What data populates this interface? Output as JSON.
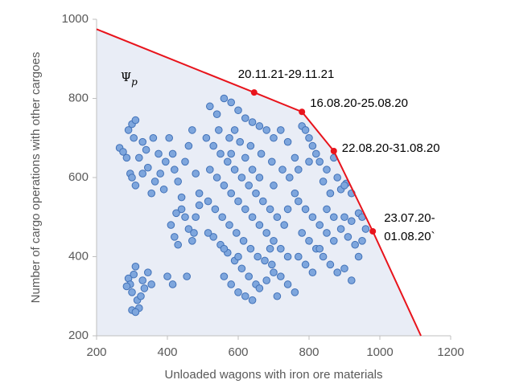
{
  "chart_data": {
    "type": "scatter",
    "xlabel": "Unloaded wagons with iron ore materials",
    "ylabel": "Number of cargo operations with other cargoes",
    "xlim": [
      200,
      1200
    ],
    "ylim": [
      200,
      1000
    ],
    "xticks": [
      200,
      400,
      600,
      800,
      1000,
      1200
    ],
    "yticks": [
      200,
      400,
      600,
      800,
      1000
    ],
    "grid": false,
    "color": "#7ea6dd",
    "edge_color": "#4272b8",
    "region_color": "#e9edf6",
    "region_symbol": "Ψ",
    "region_subscript": "p",
    "x": [
      265,
      275,
      290,
      300,
      305,
      295,
      300,
      310,
      320,
      330,
      340,
      345,
      355,
      365,
      380,
      390,
      395,
      310,
      285,
      360,
      375,
      330,
      290,
      295,
      300,
      305,
      310,
      315,
      320,
      325,
      330,
      335,
      345,
      355,
      300,
      310,
      285,
      405,
      415,
      420,
      430,
      440,
      450,
      460,
      470,
      480,
      490,
      410,
      420,
      430,
      440,
      450,
      460,
      470,
      480,
      490,
      400,
      415,
      455,
      475,
      425,
      520,
      540,
      560,
      580,
      600,
      620,
      640,
      660,
      680,
      700,
      720,
      740,
      510,
      530,
      550,
      570,
      590,
      610,
      630,
      650,
      670,
      690,
      710,
      730,
      520,
      540,
      560,
      580,
      600,
      620,
      640,
      660,
      680,
      700,
      720,
      740,
      515,
      535,
      555,
      575,
      595,
      615,
      635,
      655,
      675,
      695,
      530,
      550,
      570,
      590,
      610,
      630,
      650,
      560,
      580,
      600,
      620,
      640,
      660,
      680,
      700,
      720,
      740,
      760,
      545,
      575,
      605,
      635,
      665,
      695,
      725,
      745,
      515,
      700,
      620,
      580,
      660,
      760,
      760,
      740,
      590,
      640,
      560,
      600,
      690,
      710,
      770,
      790,
      810,
      830,
      850,
      870,
      890,
      910,
      930,
      950,
      960,
      780,
      800,
      820,
      840,
      860,
      880,
      900,
      920,
      940,
      770,
      790,
      810,
      830,
      850,
      870,
      900,
      920,
      940,
      950,
      780,
      790,
      800,
      810,
      820,
      830,
      850,
      870,
      880,
      890,
      860,
      840,
      800,
      770,
      920,
      905,
      900
    ],
    "y": [
      675,
      665,
      720,
      735,
      700,
      610,
      600,
      580,
      650,
      690,
      670,
      625,
      560,
      590,
      610,
      570,
      640,
      745,
      650,
      700,
      660,
      610,
      345,
      330,
      310,
      355,
      375,
      290,
      270,
      300,
      340,
      320,
      360,
      330,
      265,
      260,
      325,
      700,
      660,
      620,
      590,
      550,
      640,
      680,
      720,
      610,
      560,
      480,
      450,
      430,
      520,
      500,
      470,
      440,
      500,
      530,
      350,
      330,
      350,
      460,
      510,
      780,
      760,
      800,
      790,
      770,
      750,
      740,
      730,
      720,
      700,
      720,
      690,
      700,
      680,
      660,
      640,
      620,
      600,
      580,
      560,
      540,
      520,
      500,
      480,
      620,
      600,
      580,
      560,
      540,
      520,
      500,
      480,
      460,
      440,
      420,
      400,
      540,
      520,
      500,
      480,
      460,
      440,
      420,
      400,
      390,
      380,
      450,
      430,
      410,
      390,
      370,
      350,
      330,
      350,
      330,
      310,
      300,
      290,
      320,
      340,
      360,
      350,
      330,
      310,
      720,
      700,
      690,
      680,
      660,
      640,
      620,
      600,
      460,
      580,
      650,
      660,
      600,
      650,
      560,
      520,
      720,
      620,
      420,
      400,
      420,
      300,
      540,
      520,
      500,
      480,
      460,
      440,
      470,
      450,
      430,
      440,
      470,
      460,
      440,
      420,
      400,
      380,
      360,
      370,
      340,
      400,
      400,
      380,
      360,
      420,
      520,
      500,
      500,
      490,
      510,
      500,
      730,
      720,
      700,
      680,
      660,
      640,
      620,
      650,
      600,
      570,
      560,
      590,
      640,
      620,
      560,
      585,
      580
    ],
    "frontier": {
      "color": "#e8141c",
      "x": [
        200,
        645,
        780,
        870,
        980,
        1116
      ],
      "y": [
        975,
        815,
        766,
        667,
        464,
        200
      ],
      "labels": [
        null,
        "20.11.21-29.11.21",
        "16.08.20-25.08.20",
        "22.08.20-31.08.20",
        [
          "23.07.20-",
          "01.08.20`"
        ],
        null
      ]
    }
  }
}
